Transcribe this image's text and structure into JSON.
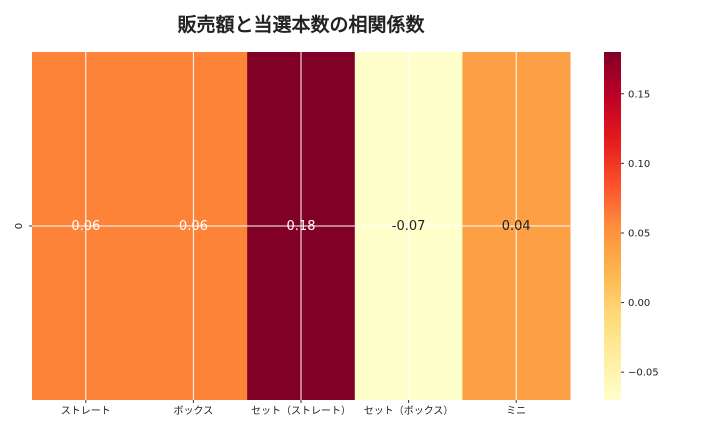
{
  "chart_data": {
    "type": "heatmap",
    "title": "販売額と当選本数の相関係数",
    "xlabel": "",
    "ylabel": "",
    "x_categories": [
      "ストレート",
      "ボックス",
      "セット（ストレート）",
      "セット（ボックス）",
      "ミニ"
    ],
    "y_categories": [
      "0"
    ],
    "values": [
      [
        0.06,
        0.06,
        0.18,
        -0.07,
        0.04
      ]
    ],
    "cell_labels": [
      "0.06",
      "0.06",
      "0.18",
      "-0.07",
      "0.04"
    ],
    "color_scale": {
      "min": -0.07,
      "max": 0.18,
      "colormap": "YlOrRd",
      "ticks": [
        -0.05,
        0.0,
        0.05,
        0.1,
        0.15
      ],
      "tick_labels": [
        "−0.05",
        "0.00",
        "0.05",
        "0.10",
        "0.15"
      ]
    },
    "grid": true
  }
}
